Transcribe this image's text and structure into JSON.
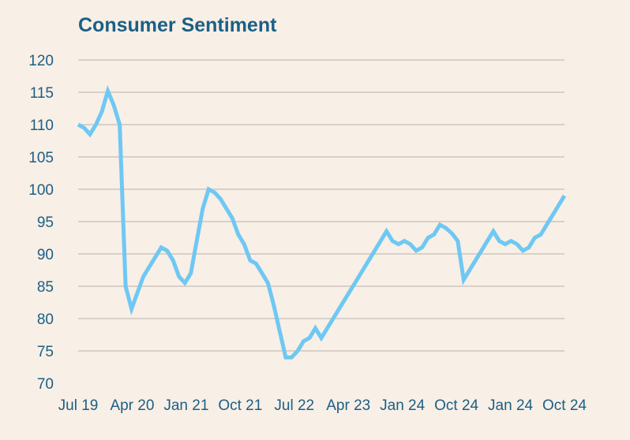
{
  "colors": {
    "background": "#f8efe6",
    "title": "#1b5f86",
    "axis_text": "#1b5f86",
    "grid": "#cdc6bf",
    "line": "#6ec8f3"
  },
  "chart_data": {
    "type": "line",
    "title": "Consumer Sentiment",
    "xlabel": "",
    "ylabel": "",
    "ylim": [
      70,
      120
    ],
    "yticks": [
      70,
      75,
      80,
      85,
      90,
      95,
      100,
      105,
      110,
      115,
      120
    ],
    "xtick_labels": [
      "Jul 19",
      "Apr 20",
      "Jan 21",
      "Oct 21",
      "Jul 22",
      "Apr 23",
      "Jan 24",
      "Oct 24",
      "Jan 24",
      "Oct 24"
    ],
    "grid": true,
    "legend": "none",
    "series": [
      {
        "values": [
          110,
          109.5,
          108.5,
          110,
          112,
          115.2,
          113,
          110,
          85,
          81.5,
          84,
          86.5,
          88,
          89.5,
          91,
          90.5,
          89,
          86.5,
          85.5,
          87,
          92,
          97,
          100,
          99.5,
          98.5,
          97,
          95.5,
          93,
          91.5,
          89,
          88.5,
          87,
          85.5,
          82,
          78,
          74,
          74,
          75,
          76.5,
          77,
          78.5,
          77,
          78.5,
          80,
          81.5,
          83,
          84.5,
          86,
          87.5,
          89,
          90.5,
          92,
          93.5,
          92,
          91.5,
          92,
          91.5,
          90.5,
          91,
          92.5,
          93,
          94.5,
          94,
          93.2,
          92,
          86,
          87.5,
          89,
          90.5,
          92,
          93.5,
          92,
          91.5,
          92,
          91.5,
          90.5,
          91,
          92.5,
          93,
          94.5,
          96,
          97.5,
          99
        ]
      }
    ]
  }
}
